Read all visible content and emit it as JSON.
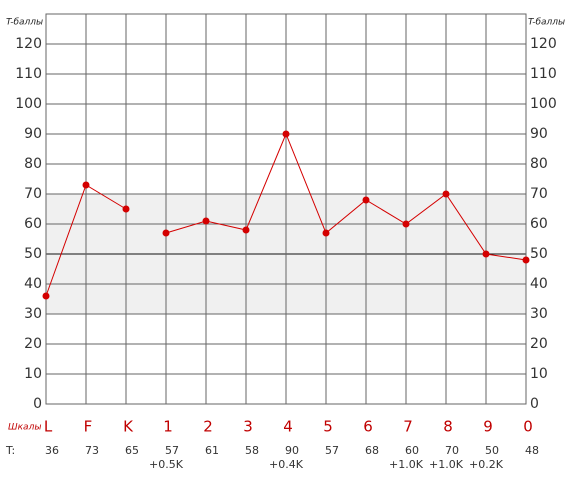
{
  "chart_data": {
    "type": "line",
    "y_label": "T-баллы",
    "row_label": "Шкалы",
    "values_row_label": "T:",
    "categories": [
      "L",
      "F",
      "K",
      "1",
      "2",
      "3",
      "4",
      "5",
      "6",
      "7",
      "8",
      "9",
      "0"
    ],
    "series": [
      {
        "color": "#d40000",
        "values": [
          36,
          73,
          65,
          null,
          null,
          null,
          null,
          null,
          null,
          null,
          null,
          null,
          null
        ]
      },
      {
        "color": "#d40000",
        "values": [
          null,
          null,
          null,
          57,
          61,
          58,
          90,
          57,
          68,
          60,
          70,
          50,
          48
        ]
      }
    ],
    "corrections": [
      null,
      null,
      null,
      "+0.5K",
      null,
      null,
      "+0.4K",
      null,
      null,
      "+1.0K",
      "+1.0K",
      "+0.2K",
      null
    ],
    "ylim": [
      0,
      130
    ],
    "yticks": [
      0,
      10,
      20,
      30,
      40,
      50,
      60,
      70,
      80,
      90,
      100,
      110,
      120
    ],
    "normal_band": [
      30,
      70
    ],
    "midline": 50,
    "grid": true
  }
}
